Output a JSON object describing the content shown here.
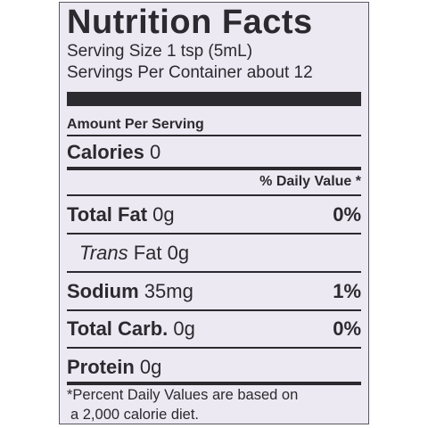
{
  "panel": {
    "title": "Nutrition Facts",
    "serving_size": "Serving Size 1 tsp (5mL)",
    "servings_per_container": "Servings Per Container about 12",
    "amount_header": "Amount Per Serving",
    "calories_label": "Calories",
    "calories_value": "0",
    "daily_value_header": "% Daily Value *",
    "rows": [
      {
        "label": "Total Fat",
        "amount": "0g",
        "dv": "0%"
      },
      {
        "label": "Trans",
        "label_rest": "Fat 0g"
      },
      {
        "label": "Sodium",
        "amount": "35mg",
        "dv": "1%"
      },
      {
        "label": "Total Carb.",
        "amount": "0g",
        "dv": "0%"
      },
      {
        "label": "Protein",
        "amount": "0g"
      }
    ],
    "footnote_line1": "*Percent Daily Values are based on",
    "footnote_line2": "a 2,000 calorie diet."
  },
  "colors": {
    "background": "#ede9f2",
    "ink": "#2b2a2f",
    "border": "#5a5560"
  }
}
